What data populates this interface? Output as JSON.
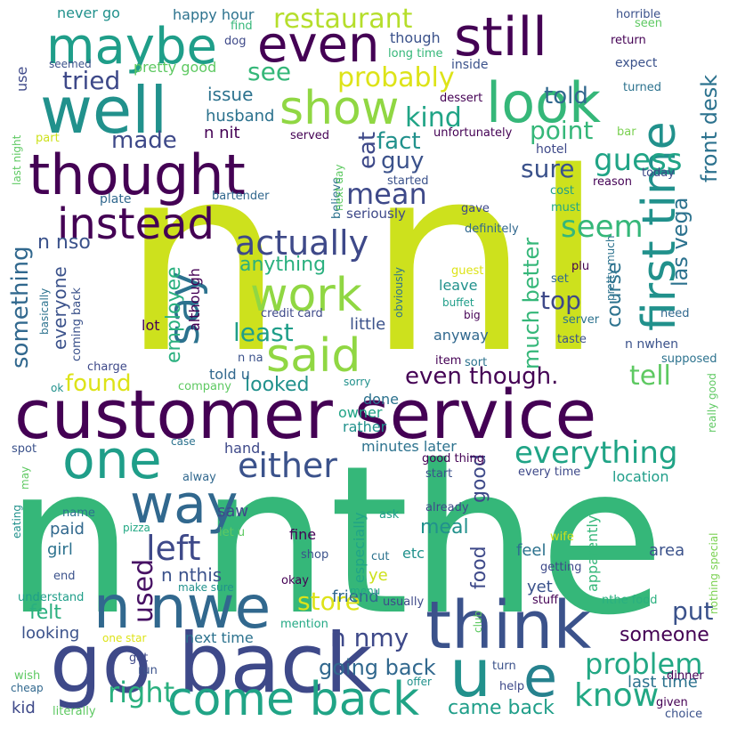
{
  "words": [
    {
      "text": "n nthe",
      "color": "#35b779"
    },
    {
      "text": "n nI",
      "color": "#cde11d"
    },
    {
      "text": "customer service",
      "color": "#440154"
    },
    {
      "text": "think",
      "color": "#3b528b"
    },
    {
      "text": "go back",
      "color": "#3e4989"
    },
    {
      "text": "come back",
      "color": "#20a486"
    },
    {
      "text": "n nwe",
      "color": "#31688e"
    },
    {
      "text": "one",
      "color": "#1f9e89"
    },
    {
      "text": "way",
      "color": "#31688e"
    },
    {
      "text": "u",
      "color": "#21918c"
    },
    {
      "text": "e",
      "color": "#26828e"
    },
    {
      "text": "thought",
      "color": "#440154"
    },
    {
      "text": "instead",
      "color": "#440154"
    },
    {
      "text": "well",
      "color": "#21918c"
    },
    {
      "text": "maybe",
      "color": "#1f9e89"
    },
    {
      "text": "even",
      "color": "#440154"
    },
    {
      "text": "still",
      "color": "#440154"
    },
    {
      "text": "look",
      "color": "#35b779"
    },
    {
      "text": "show",
      "color": "#90d743"
    },
    {
      "text": "work",
      "color": "#90d743"
    },
    {
      "text": "said",
      "color": "#90d743"
    },
    {
      "text": "say",
      "color": "#2c728e"
    },
    {
      "text": "first time",
      "color": "#21918c"
    },
    {
      "text": "actually",
      "color": "#3e4989"
    },
    {
      "text": "either",
      "color": "#3b528b"
    },
    {
      "text": "everything",
      "color": "#20a486"
    },
    {
      "text": "left",
      "color": "#3e4989"
    },
    {
      "text": "used",
      "color": "#471164"
    },
    {
      "text": "right",
      "color": "#2ab07f"
    },
    {
      "text": "know",
      "color": "#22a884"
    },
    {
      "text": "problem",
      "color": "#22a884"
    },
    {
      "text": "restaurant",
      "color": "#b5de2b"
    },
    {
      "text": "tried",
      "color": "#3e4989"
    },
    {
      "text": "probably",
      "color": "#dde318"
    },
    {
      "text": "kind",
      "color": "#20a486"
    },
    {
      "text": "mean",
      "color": "#3e4989"
    },
    {
      "text": "guess",
      "color": "#20a486"
    },
    {
      "text": "seem",
      "color": "#35b779"
    },
    {
      "text": "top",
      "color": "#3e4989"
    },
    {
      "text": "point",
      "color": "#35b779"
    },
    {
      "text": "told",
      "color": "#31688e"
    },
    {
      "text": "eat",
      "color": "#3e4989"
    },
    {
      "text": "fact",
      "color": "#21918c"
    },
    {
      "text": "guy",
      "color": "#3b528b"
    },
    {
      "text": "sure",
      "color": "#3b528b"
    },
    {
      "text": "front desk",
      "color": "#2c728e"
    },
    {
      "text": "las vega",
      "color": "#2c728e"
    },
    {
      "text": "much better",
      "color": "#35b779"
    },
    {
      "text": "course",
      "color": "#2c728e"
    },
    {
      "text": "tell",
      "color": "#5ec962"
    },
    {
      "text": "even though.",
      "color": "#440154"
    },
    {
      "text": "least",
      "color": "#1f9e89"
    },
    {
      "text": "found",
      "color": "#dde318"
    },
    {
      "text": "looked",
      "color": "#21918c"
    },
    {
      "text": "employee",
      "color": "#2ab07f"
    },
    {
      "text": "something",
      "color": "#31688e"
    },
    {
      "text": "everyone",
      "color": "#3b528b"
    },
    {
      "text": "n nso",
      "color": "#3b528b"
    },
    {
      "text": "made",
      "color": "#3e4989"
    },
    {
      "text": "issue",
      "color": "#2c728e"
    },
    {
      "text": "husband",
      "color": "#2c728e"
    },
    {
      "text": "n nit",
      "color": "#440154"
    },
    {
      "text": "see",
      "color": "#35b779"
    },
    {
      "text": "store",
      "color": "#dde318"
    },
    {
      "text": "felt",
      "color": "#2ab07f"
    },
    {
      "text": "put",
      "color": "#3b528b"
    },
    {
      "text": "someone",
      "color": "#440154"
    },
    {
      "text": "going back",
      "color": "#31688e"
    },
    {
      "text": "came back",
      "color": "#1f9e89"
    },
    {
      "text": "last time",
      "color": "#2c728e"
    },
    {
      "text": "n nmy",
      "color": "#3e4989"
    },
    {
      "text": "meal",
      "color": "#21918c"
    },
    {
      "text": "food",
      "color": "#3e4989"
    },
    {
      "text": "good",
      "color": "#3e4989"
    },
    {
      "text": "anything",
      "color": "#2ab07f"
    },
    {
      "text": "n nthis",
      "color": "#3b528b"
    },
    {
      "text": "told u",
      "color": "#31688e"
    },
    {
      "text": "done",
      "color": "#2c728e"
    },
    {
      "text": "rather",
      "color": "#21918c"
    },
    {
      "text": "owner",
      "color": "#20a486"
    },
    {
      "text": "minutes later",
      "color": "#2c728e"
    },
    {
      "text": "saw",
      "color": "#3e4989"
    },
    {
      "text": "hand",
      "color": "#3e4989"
    },
    {
      "text": "paid",
      "color": "#31688e"
    },
    {
      "text": "girl",
      "color": "#2c728e"
    },
    {
      "text": "fine",
      "color": "#440154"
    },
    {
      "text": "etc",
      "color": "#21918c"
    },
    {
      "text": "feel",
      "color": "#2c728e"
    },
    {
      "text": "yet",
      "color": "#3b528b"
    },
    {
      "text": "area",
      "color": "#3b528b"
    },
    {
      "text": "location",
      "color": "#1f9e89"
    },
    {
      "text": "especially",
      "color": "#20a486"
    },
    {
      "text": "ye",
      "color": "#cde11d"
    },
    {
      "text": "friend",
      "color": "#31688e"
    },
    {
      "text": "looking",
      "color": "#3b528b"
    },
    {
      "text": "next time",
      "color": "#2c728e"
    },
    {
      "text": "kid",
      "color": "#3e4989"
    },
    {
      "text": "apparently",
      "color": "#35b779"
    },
    {
      "text": "lot",
      "color": "#440154"
    },
    {
      "text": "although",
      "color": "#440154"
    },
    {
      "text": "little",
      "color": "#3b528b"
    },
    {
      "text": "anyway",
      "color": "#31688e"
    },
    {
      "text": "leave",
      "color": "#21918c"
    },
    {
      "text": "buffet",
      "color": "#1f9e89"
    },
    {
      "text": "big",
      "color": "#440154"
    },
    {
      "text": "n nwhen",
      "color": "#3b528b"
    },
    {
      "text": "server",
      "color": "#2c728e"
    },
    {
      "text": "taste",
      "color": "#3b528b"
    },
    {
      "text": "need",
      "color": "#31688e"
    },
    {
      "text": "supposed",
      "color": "#2c728e"
    },
    {
      "text": "sort",
      "color": "#2c728e"
    },
    {
      "text": "item",
      "color": "#440154"
    },
    {
      "text": "never go",
      "color": "#21918c"
    },
    {
      "text": "happy hour",
      "color": "#2c728e"
    },
    {
      "text": "though",
      "color": "#3b528b"
    },
    {
      "text": "long time",
      "color": "#35b779"
    },
    {
      "text": "inside",
      "color": "#3b528b"
    },
    {
      "text": "expect",
      "color": "#3b528b"
    },
    {
      "text": "pretty good",
      "color": "#5ec962"
    },
    {
      "text": "dessert",
      "color": "#440154"
    },
    {
      "text": "turned",
      "color": "#2c728e"
    },
    {
      "text": "unfortunately",
      "color": "#440154"
    },
    {
      "text": "served",
      "color": "#440154"
    },
    {
      "text": "hotel",
      "color": "#3e4989"
    },
    {
      "text": "started",
      "color": "#3b528b"
    },
    {
      "text": "seriously",
      "color": "#3e4989"
    },
    {
      "text": "gave",
      "color": "#3e4989"
    },
    {
      "text": "definitely",
      "color": "#31688e"
    },
    {
      "text": "believe",
      "color": "#2c728e"
    },
    {
      "text": "plate",
      "color": "#31688e"
    },
    {
      "text": "bartender",
      "color": "#31688e"
    },
    {
      "text": "credit card",
      "color": "#3e4989"
    },
    {
      "text": "obviously",
      "color": "#2c728e"
    },
    {
      "text": "coming back",
      "color": "#3b528b"
    },
    {
      "text": "charge",
      "color": "#3e4989"
    },
    {
      "text": "n na",
      "color": "#3b528b"
    },
    {
      "text": "company",
      "color": "#5ec962"
    },
    {
      "text": "sorry",
      "color": "#21918c"
    },
    {
      "text": "ok",
      "color": "#21918c"
    },
    {
      "text": "horrible",
      "color": "#3b528b"
    },
    {
      "text": "seen",
      "color": "#5ec962"
    },
    {
      "text": "return",
      "color": "#440154"
    },
    {
      "text": "find",
      "color": "#35b779"
    },
    {
      "text": "dog",
      "color": "#3e4989"
    },
    {
      "text": "use",
      "color": "#3e4989"
    },
    {
      "text": "seemed",
      "color": "#3b528b"
    },
    {
      "text": "part",
      "color": "#cde11d"
    },
    {
      "text": "last night",
      "color": "#5ec962"
    },
    {
      "text": "next day",
      "color": "#5ec962"
    },
    {
      "text": "bar",
      "color": "#7ad151"
    },
    {
      "text": "today",
      "color": "#3e4989"
    },
    {
      "text": "reason",
      "color": "#440154"
    },
    {
      "text": "cost",
      "color": "#1f9e89"
    },
    {
      "text": "must",
      "color": "#22a884"
    },
    {
      "text": "plu",
      "color": "#440154"
    },
    {
      "text": "guest",
      "color": "#dde318"
    },
    {
      "text": "set",
      "color": "#31688e"
    },
    {
      "text": "pretty much",
      "color": "#2c728e"
    },
    {
      "text": "basically",
      "color": "#2c728e"
    },
    {
      "text": "alway",
      "color": "#31688e"
    },
    {
      "text": "case",
      "color": "#2c728e"
    },
    {
      "text": "good thing",
      "color": "#440154"
    },
    {
      "text": "start",
      "color": "#3b528b"
    },
    {
      "text": "every time",
      "color": "#3e4989"
    },
    {
      "text": "already",
      "color": "#3e4989"
    },
    {
      "text": "ask",
      "color": "#1f9e89"
    },
    {
      "text": "spot",
      "color": "#3b528b"
    },
    {
      "text": "may",
      "color": "#5ec962"
    },
    {
      "text": "eating",
      "color": "#21918c"
    },
    {
      "text": "name",
      "color": "#2c728e"
    },
    {
      "text": "pizza",
      "color": "#22a884"
    },
    {
      "text": "let u",
      "color": "#5ec962"
    },
    {
      "text": "shop",
      "color": "#3b528b"
    },
    {
      "text": "cut",
      "color": "#2c728e"
    },
    {
      "text": "wife",
      "color": "#cde11d"
    },
    {
      "text": "getting",
      "color": "#3e4989"
    },
    {
      "text": "end",
      "color": "#3b528b"
    },
    {
      "text": "understand",
      "color": "#1f9e89"
    },
    {
      "text": "make sure",
      "color": "#21918c"
    },
    {
      "text": "okay",
      "color": "#440154"
    },
    {
      "text": "menu",
      "color": "#22a884"
    },
    {
      "text": "usually",
      "color": "#3e4989"
    },
    {
      "text": "club",
      "color": "#5ec962"
    },
    {
      "text": "stuff",
      "color": "#440154"
    },
    {
      "text": "nthe food",
      "color": "#2ab07f"
    },
    {
      "text": "mention",
      "color": "#22a884"
    },
    {
      "text": "one star",
      "color": "#dde318"
    },
    {
      "text": "wish",
      "color": "#5ec962"
    },
    {
      "text": "cheap",
      "color": "#31688e"
    },
    {
      "text": "got",
      "color": "#3e4989"
    },
    {
      "text": "run",
      "color": "#3b528b"
    },
    {
      "text": "offer",
      "color": "#21918c"
    },
    {
      "text": "turn",
      "color": "#3b528b"
    },
    {
      "text": "help",
      "color": "#3e4989"
    },
    {
      "text": "dinner",
      "color": "#440154"
    },
    {
      "text": "given",
      "color": "#440154"
    },
    {
      "text": "choice",
      "color": "#3b528b"
    },
    {
      "text": "literally",
      "color": "#5ec962"
    },
    {
      "text": "really good",
      "color": "#5ec962"
    },
    {
      "text": "nothing special",
      "color": "#7ad151"
    }
  ]
}
